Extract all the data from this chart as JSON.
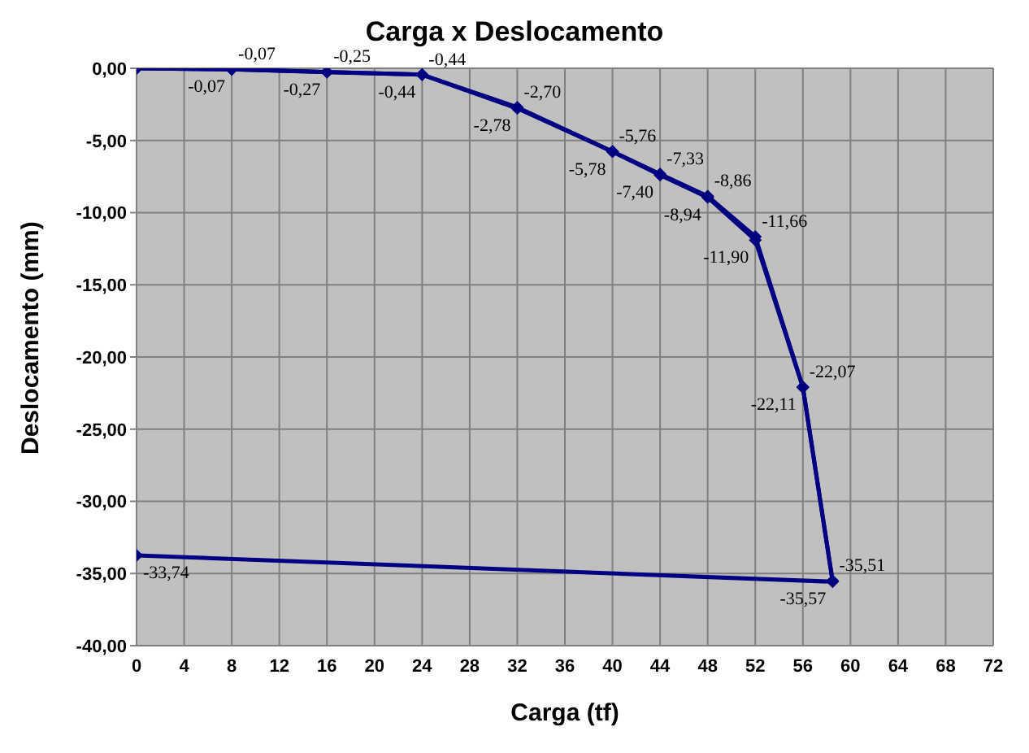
{
  "chart_data": {
    "type": "line",
    "title": "Carga x Deslocamento",
    "xlabel": "Carga (tf)",
    "ylabel": "Deslocamento (mm)",
    "xlim": [
      0,
      72
    ],
    "xticks": [
      0,
      4,
      8,
      12,
      16,
      20,
      24,
      28,
      32,
      36,
      40,
      44,
      48,
      52,
      56,
      60,
      64,
      68,
      72
    ],
    "ylim": [
      -40,
      0
    ],
    "yticks": [
      {
        "value": 0,
        "label": "0,00"
      },
      {
        "value": -5,
        "label": "-5,00"
      },
      {
        "value": -10,
        "label": "-10,00"
      },
      {
        "value": -15,
        "label": "-15,00"
      },
      {
        "value": -20,
        "label": "-20,00"
      },
      {
        "value": -25,
        "label": "-25,00"
      },
      {
        "value": -30,
        "label": "-30,00"
      },
      {
        "value": -35,
        "label": "-35,00"
      },
      {
        "value": -40,
        "label": "-40,00"
      }
    ],
    "grid": true,
    "legend": false,
    "marker": "diamond",
    "line_style": "solid",
    "series": [
      {
        "color": "#000080",
        "x": [
          0,
          8,
          16,
          24,
          32,
          40,
          44,
          48,
          52,
          56,
          58.5
        ],
        "values": [
          0,
          -0.07,
          -0.25,
          -0.44,
          -2.7,
          -5.76,
          -7.33,
          -8.86,
          -11.66,
          -22.07,
          -35.51
        ],
        "value_labels": [
          null,
          "-0,07",
          "-0,25",
          "-0,44",
          "-2,70",
          "-5,76",
          "-7,33",
          "-8,86",
          "-11,66",
          "-22,07",
          "-35,51"
        ]
      },
      {
        "color": "#000080",
        "x": [
          0,
          8,
          16,
          24,
          32,
          40,
          44,
          48,
          52,
          56,
          58.5,
          0
        ],
        "values": [
          0,
          -0.07,
          -0.27,
          -0.44,
          -2.78,
          -5.78,
          -7.4,
          -8.94,
          -11.9,
          -22.11,
          -35.57,
          -33.74
        ],
        "value_labels": [
          null,
          "-0,07",
          "-0,27",
          "-0,44",
          "-2,78",
          "-5,78",
          "-7,40",
          "-8,94",
          "-11,90",
          "-22,11",
          "-35,57",
          "-33,74"
        ]
      }
    ]
  }
}
